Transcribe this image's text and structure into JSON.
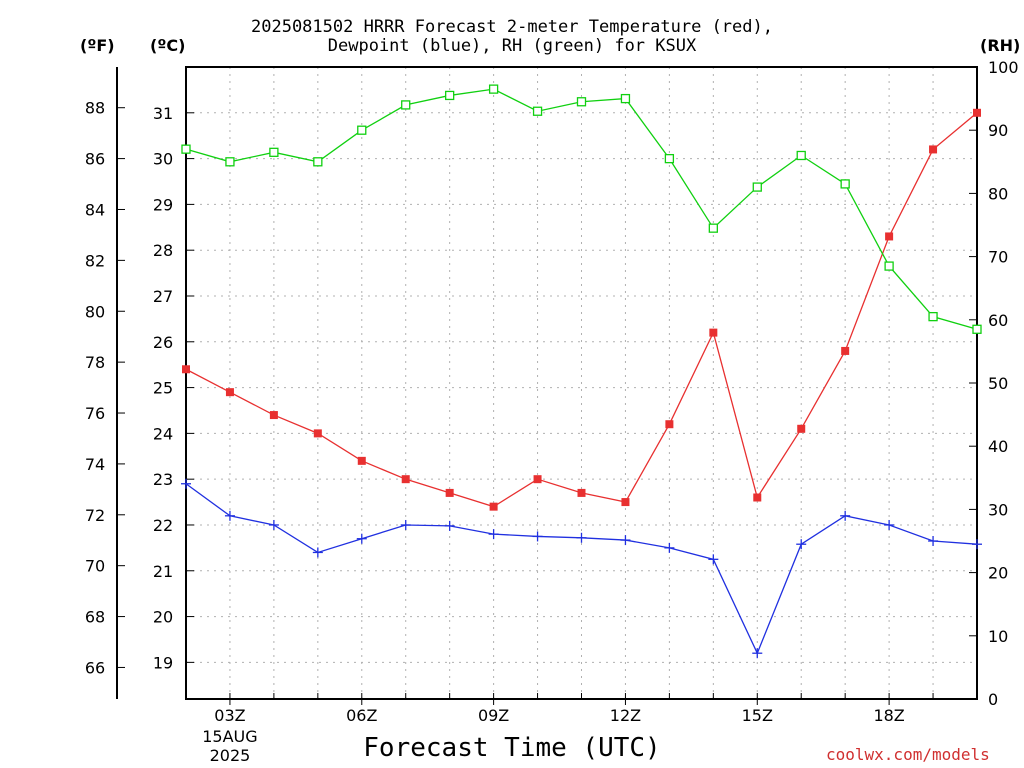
{
  "chart_data": {
    "type": "line",
    "title_line1": "2025081502 HRRR Forecast 2-meter Temperature (red),",
    "title_line2": "Dewpoint (blue), RH (green) for KSUX",
    "xlabel": "Forecast Time (UTC)",
    "credit": "coolwx.com/models",
    "unit_labels": {
      "fahrenheit": "(ºF)",
      "celsius": "(ºC)",
      "rh": "(RH)"
    },
    "x_hours": [
      2,
      3,
      4,
      5,
      6,
      7,
      8,
      9,
      10,
      11,
      12,
      13,
      14,
      15,
      16,
      17,
      18,
      19,
      20
    ],
    "x_ticks": [
      {
        "hour": 3,
        "label": "03Z",
        "sub": [
          "15AUG",
          "2025"
        ]
      },
      {
        "hour": 6,
        "label": "06Z"
      },
      {
        "hour": 9,
        "label": "09Z"
      },
      {
        "hour": 12,
        "label": "12Z"
      },
      {
        "hour": 15,
        "label": "15Z"
      },
      {
        "hour": 18,
        "label": "18Z"
      }
    ],
    "xlim": [
      2,
      20
    ],
    "ylim_celsius": [
      18.2,
      32.0
    ],
    "ylim_rh": [
      0,
      100
    ],
    "celsius_ticks": [
      19,
      20,
      21,
      22,
      23,
      24,
      25,
      26,
      27,
      28,
      29,
      30,
      31
    ],
    "fahrenheit_ticks": [
      66,
      68,
      70,
      72,
      74,
      76,
      78,
      80,
      82,
      84,
      86,
      88
    ],
    "rh_ticks": [
      0,
      10,
      20,
      30,
      40,
      50,
      60,
      70,
      80,
      90,
      100
    ],
    "grid": true,
    "series": [
      {
        "name": "Temperature",
        "axis": "celsius",
        "color": "#e83030",
        "marker": "filled-square",
        "values": [
          25.4,
          24.9,
          24.4,
          24.0,
          23.4,
          23.0,
          22.7,
          22.4,
          23.0,
          22.7,
          22.5,
          24.2,
          26.2,
          22.6,
          24.1,
          25.8,
          28.3,
          30.2,
          31.0
        ]
      },
      {
        "name": "Dewpoint",
        "axis": "celsius",
        "color": "#2030e0",
        "marker": "plus",
        "values": [
          22.9,
          22.2,
          22.0,
          21.4,
          21.7,
          22.0,
          21.98,
          21.8,
          21.75,
          21.72,
          21.67,
          21.5,
          21.25,
          19.2,
          21.58,
          22.2,
          22.0,
          21.65,
          21.58
        ]
      },
      {
        "name": "RH",
        "axis": "rh",
        "color": "#10d010",
        "marker": "open-square",
        "values": [
          87,
          85,
          86.5,
          85,
          90,
          94,
          95.5,
          96.5,
          93,
          94.5,
          95,
          85.5,
          74.5,
          81,
          86,
          81.5,
          68.5,
          60.5,
          58.5
        ]
      }
    ]
  }
}
